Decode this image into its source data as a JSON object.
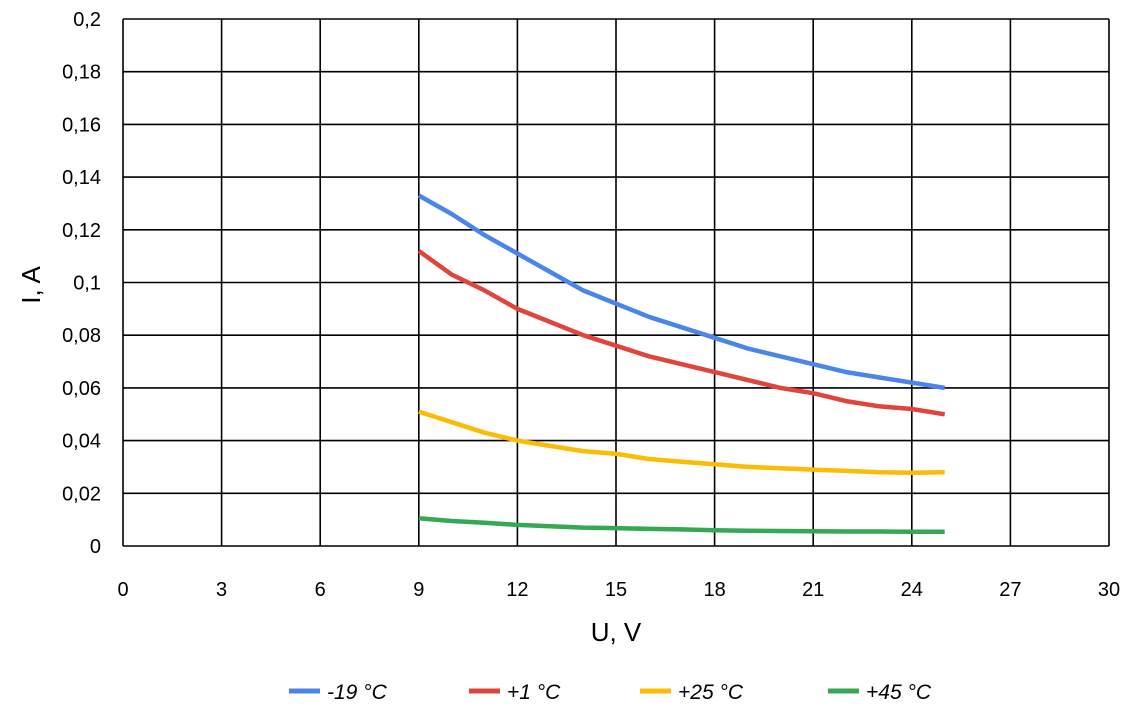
{
  "chart_data": {
    "type": "line",
    "xlabel": "U, V",
    "ylabel": "I, A",
    "xlim": [
      0,
      30
    ],
    "ylim": [
      0,
      0.2
    ],
    "x_ticks": [
      "0",
      "3",
      "6",
      "9",
      "12",
      "15",
      "18",
      "21",
      "24",
      "27",
      "30"
    ],
    "y_ticks": [
      "0",
      "0,02",
      "0,04",
      "0,06",
      "0,08",
      "0,1",
      "0,12",
      "0,14",
      "0,16",
      "0,18",
      "0,2"
    ],
    "grid": true,
    "legend_position": "bottom",
    "series": [
      {
        "name": "-19 °C",
        "color": "#4a86e8",
        "x": [
          9,
          10,
          11,
          12,
          13,
          14,
          15,
          16,
          17,
          18,
          19,
          20,
          21,
          22,
          23,
          24,
          25
        ],
        "y": [
          0.133,
          0.126,
          0.118,
          0.111,
          0.104,
          0.097,
          0.092,
          0.087,
          0.083,
          0.079,
          0.075,
          0.072,
          0.069,
          0.066,
          0.064,
          0.062,
          0.06
        ]
      },
      {
        "name": "+1 °C",
        "color": "#e0443a",
        "x": [
          9,
          10,
          11,
          12,
          13,
          14,
          15,
          16,
          17,
          18,
          19,
          20,
          21,
          22,
          23,
          24,
          25
        ],
        "y": [
          0.112,
          0.103,
          0.097,
          0.09,
          0.085,
          0.08,
          0.076,
          0.072,
          0.069,
          0.066,
          0.063,
          0.06,
          0.058,
          0.055,
          0.053,
          0.052,
          0.05
        ]
      },
      {
        "name": "+25 °C",
        "color": "#fbbc04",
        "x": [
          9,
          10,
          11,
          12,
          13,
          14,
          15,
          16,
          17,
          18,
          19,
          20,
          21,
          22,
          23,
          24,
          25
        ],
        "y": [
          0.051,
          0.047,
          0.043,
          0.04,
          0.038,
          0.036,
          0.035,
          0.033,
          0.032,
          0.031,
          0.03,
          0.0295,
          0.029,
          0.0285,
          0.028,
          0.0278,
          0.028
        ]
      },
      {
        "name": "+45 °C",
        "color": "#34a853",
        "x": [
          9,
          10,
          11,
          12,
          13,
          14,
          15,
          16,
          17,
          18,
          19,
          20,
          21,
          22,
          23,
          24,
          25
        ],
        "y": [
          0.0105,
          0.0095,
          0.0088,
          0.008,
          0.0075,
          0.007,
          0.0068,
          0.0065,
          0.0063,
          0.006,
          0.0058,
          0.0057,
          0.0056,
          0.0055,
          0.0055,
          0.0054,
          0.0054
        ]
      }
    ]
  }
}
